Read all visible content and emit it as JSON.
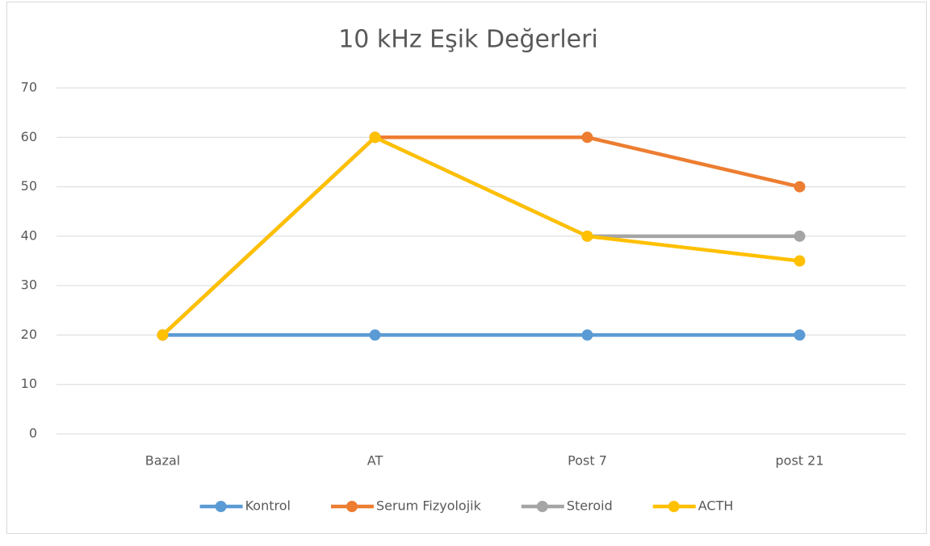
{
  "chart_data": {
    "type": "line",
    "title": "10 kHz Eşik Değerleri",
    "categories": [
      "Bazal",
      "AT",
      "Post 7",
      "post 21"
    ],
    "series": [
      {
        "name": "Kontrol",
        "color": "#5b9bd5",
        "values": [
          20,
          20,
          20,
          20
        ]
      },
      {
        "name": "Serum Fizyolojik",
        "color": "#ed7d31",
        "values": [
          20,
          60,
          60,
          50
        ]
      },
      {
        "name": "Steroid",
        "color": "#a5a5a5",
        "values": [
          20,
          60,
          40,
          40
        ]
      },
      {
        "name": "ACTH",
        "color": "#ffc000",
        "values": [
          20,
          60,
          40,
          35
        ]
      }
    ],
    "ylim": [
      0,
      70
    ],
    "yticks": [
      0,
      10,
      20,
      30,
      40,
      50,
      60,
      70
    ],
    "grid": true,
    "legend": "bottom"
  }
}
